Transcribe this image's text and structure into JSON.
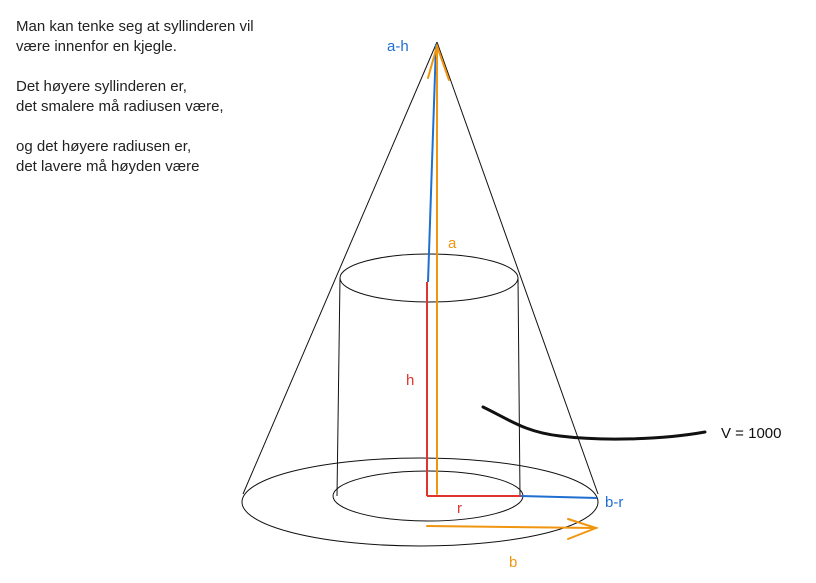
{
  "note": {
    "p1": [
      "Man kan tenke seg at syllinderen vil",
      "være innenfor en kjegle."
    ],
    "p2": [
      "Det høyere syllinderen er,",
      "det smalere må radiusen være,"
    ],
    "p3": [
      "og det høyere radiusen er,",
      "det lavere må høyden være"
    ]
  },
  "labels": {
    "a_minus_h": "a-h",
    "a": "a",
    "h": "h",
    "r": "r",
    "b_minus_r": "b-r",
    "b": "b",
    "volume": "V = 1000"
  },
  "colors": {
    "blue": "#1f6fd1",
    "orange": "#f0950f",
    "red": "#e0342f",
    "black": "#111111"
  }
}
